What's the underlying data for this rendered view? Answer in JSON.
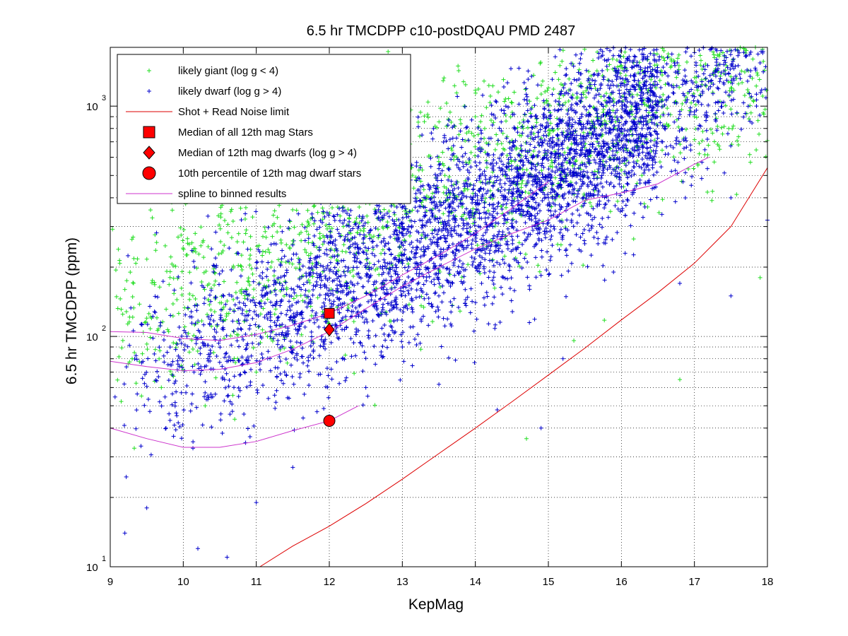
{
  "chart_data": {
    "type": "scatter",
    "title": "6.5 hr TMCDPP c10-postDQAU PMD 2487",
    "xlabel": "KepMag",
    "ylabel": "6.5 hr TMCDPP (ppm)",
    "xlim": [
      9,
      18
    ],
    "ylim": [
      10,
      1800
    ],
    "yscale": "log",
    "grid": true,
    "legend_position": "top-left",
    "x_ticks": [
      "9",
      "10",
      "11",
      "12",
      "13",
      "14",
      "15",
      "16",
      "17",
      "18"
    ],
    "y_ticks": [
      {
        "base": "10",
        "exp": "1",
        "value": 10
      },
      {
        "base": "10",
        "exp": "2",
        "value": 100
      },
      {
        "base": "10",
        "exp": "3",
        "value": 1000
      }
    ],
    "series": [
      {
        "name": "likely giant (log g < 4)",
        "marker": "plus",
        "color": "#22dd22",
        "description_points": [
          [
            9.2,
            160
          ],
          [
            9.5,
            120
          ],
          [
            9.8,
            105
          ],
          [
            10.2,
            115
          ],
          [
            10.5,
            140
          ],
          [
            10.8,
            160
          ],
          [
            11.2,
            200
          ],
          [
            11.5,
            260
          ],
          [
            12,
            300
          ],
          [
            12.5,
            380
          ],
          [
            13,
            450
          ],
          [
            13.5,
            600
          ],
          [
            14,
            900
          ],
          [
            15,
            1200
          ],
          [
            16,
            1500
          ],
          [
            17,
            900
          ],
          [
            17.5,
            1200
          ],
          [
            17.8,
            1600
          ],
          [
            9.3,
            80
          ],
          [
            9.7,
            60
          ],
          [
            10.3,
            50
          ],
          [
            11,
            70
          ],
          [
            11.5,
            90
          ],
          [
            14.7,
            36
          ],
          [
            16.8,
            65
          ],
          [
            17.9,
            180
          ]
        ]
      },
      {
        "name": "likely dwarf (log g > 4)",
        "marker": "plus",
        "color": "#0000cc",
        "description_points": [
          [
            9.2,
            14
          ],
          [
            9.5,
            18
          ],
          [
            10.2,
            12
          ],
          [
            10.6,
            11
          ],
          [
            11,
            19
          ],
          [
            11.5,
            27
          ],
          [
            12,
            45
          ],
          [
            12.5,
            60
          ],
          [
            13,
            90
          ],
          [
            13.5,
            150
          ],
          [
            14,
            200
          ],
          [
            14.5,
            300
          ],
          [
            15,
            400
          ],
          [
            15.5,
            500
          ],
          [
            16,
            800
          ],
          [
            16.5,
            1000
          ],
          [
            17,
            1100
          ],
          [
            17.5,
            400
          ],
          [
            18,
            320
          ],
          [
            17.5,
            150
          ],
          [
            16.8,
            170
          ],
          [
            15.2,
            80
          ],
          [
            14.3,
            48
          ],
          [
            14.9,
            40
          ]
        ]
      },
      {
        "name": "Shot + Read Noise limit",
        "type": "line",
        "color": "#dd0000",
        "x": [
          11.05,
          11.5,
          12,
          12.5,
          13,
          13.5,
          14,
          14.5,
          15,
          15.5,
          16,
          16.5,
          17,
          17.5,
          18
        ],
        "y": [
          10,
          12.3,
          15,
          18.8,
          24,
          31,
          40,
          52,
          68,
          89,
          118,
          155,
          208,
          300,
          540
        ]
      },
      {
        "name": "Median of all 12th mag Stars",
        "marker": "square",
        "color": "#ff0000",
        "x": [
          12
        ],
        "y": [
          126
        ]
      },
      {
        "name": "Median of 12th mag dwarfs (log g > 4)",
        "marker": "diamond",
        "color": "#ff0000",
        "x": [
          12
        ],
        "y": [
          107
        ]
      },
      {
        "name": "10th percentile of 12th mag dwarf stars",
        "marker": "circle",
        "color": "#ff0000",
        "x": [
          12
        ],
        "y": [
          43
        ]
      },
      {
        "name": "spline to binned results",
        "type": "line",
        "color": "#cc33cc",
        "curves": [
          {
            "x": [
              9,
              9.5,
              10,
              10.5,
              11,
              11.5,
              12,
              12.5,
              13,
              13.5,
              14,
              14.5,
              15
            ],
            "y": [
              105,
              104,
              98,
              96,
              102,
              112,
              126,
              150,
              185,
              225,
              280,
              360,
              470
            ]
          },
          {
            "x": [
              9,
              9.5,
              10,
              10.5,
              11,
              11.5,
              12,
              12.5,
              13,
              13.5,
              14,
              14.5,
              15,
              15.5,
              16,
              16.5,
              17,
              17.2
            ],
            "y": [
              78,
              74,
              71,
              72,
              77,
              88,
              105,
              132,
              165,
              200,
              240,
              280,
              320,
              390,
              420,
              460,
              560,
              600
            ]
          },
          {
            "x": [
              9,
              9.5,
              10,
              10.5,
              11,
              11.5,
              12,
              12.4
            ],
            "y": [
              40,
              36,
              33,
              33,
              35,
              39,
              43,
              50
            ]
          }
        ]
      }
    ]
  },
  "legend": [
    {
      "label": "likely giant (log g < 4)",
      "symbol": "plus",
      "color": "#22dd22"
    },
    {
      "label": "likely dwarf (log g > 4)",
      "symbol": "plus",
      "color": "#0000cc"
    },
    {
      "label": "Shot + Read Noise limit",
      "symbol": "line",
      "color": "#dd0000"
    },
    {
      "label": "Median of all 12th mag Stars",
      "symbol": "square",
      "color": "#ff0000"
    },
    {
      "label": "Median of 12th mag dwarfs (log g > 4)",
      "symbol": "diamond",
      "color": "#ff0000"
    },
    {
      "label": "10th percentile of 12th mag dwarf stars",
      "symbol": "circle",
      "color": "#ff0000"
    },
    {
      "label": "spline to binned results",
      "symbol": "line",
      "color": "#cc33cc"
    }
  ]
}
